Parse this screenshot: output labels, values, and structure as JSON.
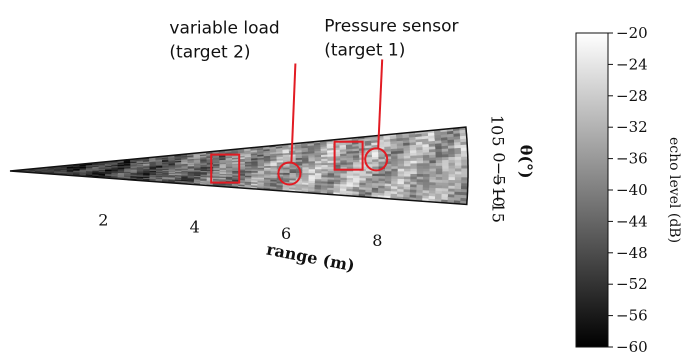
{
  "chart_data": {
    "type": "heatmap",
    "projection": "polar-sector",
    "xlabel": "range (m)",
    "ylabel": "θ(°)",
    "range_ticks": [
      2,
      4,
      6,
      8
    ],
    "angle_ticks": [
      10,
      5,
      0,
      -5,
      -10,
      -15
    ],
    "angle_tick_labels": [
      "10",
      "5",
      "0",
      "−5",
      "−10",
      "−15"
    ],
    "xlim": [
      0,
      10
    ],
    "angle_lim": [
      -15,
      10
    ],
    "colorbar": {
      "label": "echo level (dB)",
      "ticks": [
        -20,
        -24,
        -28,
        -32,
        -36,
        -40,
        -44,
        -48,
        -52,
        -56,
        -60
      ],
      "tick_labels": [
        "−20",
        "−24",
        "−28",
        "−32",
        "−36",
        "−40",
        "−44",
        "−48",
        "−52",
        "−56",
        "−60"
      ],
      "range": [
        -60,
        -20
      ],
      "colormap": "grayscale"
    },
    "annotations": [
      {
        "line1": "Pressure sensor",
        "line2": "(target 1)",
        "range": 8.0,
        "angle": 0.5
      },
      {
        "line1": "variable load",
        "line2": "(target 2)",
        "range": 6.1,
        "angle": -5.5
      }
    ],
    "highlight_boxes": [
      {
        "range": 4.7,
        "angle": -2.5
      },
      {
        "range": 7.4,
        "angle": 2.5
      }
    ],
    "annotation_color": "#e21b23"
  }
}
